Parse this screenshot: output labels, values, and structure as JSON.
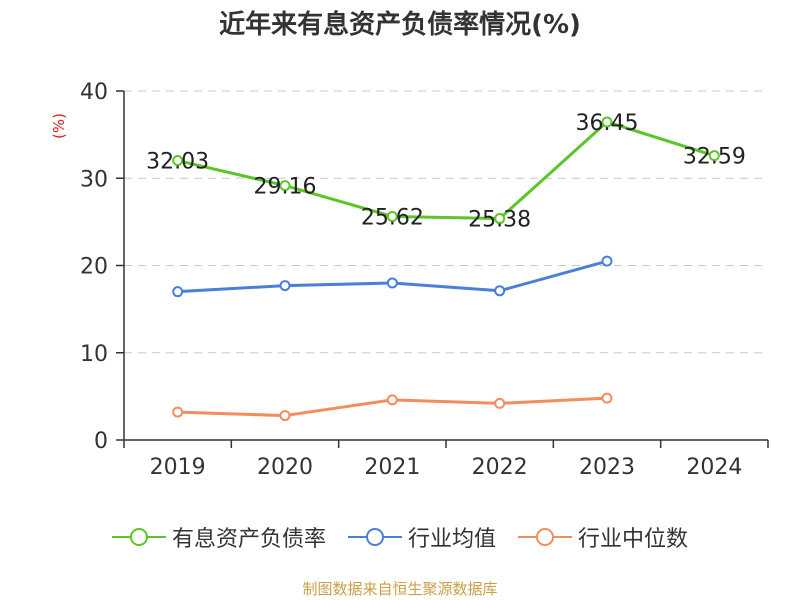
{
  "title": "近年来有息资产负债率情况(%)",
  "source": "制图数据来自恒生聚源数据库",
  "chart_data": {
    "type": "line",
    "categories": [
      "2019",
      "2020",
      "2021",
      "2022",
      "2023",
      "2024"
    ],
    "ylabel": "(%)",
    "ylim": [
      0,
      40
    ],
    "yticks": [
      0,
      10,
      20,
      30,
      40
    ],
    "grid": true,
    "legend_position": "bottom",
    "series": [
      {
        "name": "有息资产负债率",
        "color": "#5ec42b",
        "values": [
          32.03,
          29.16,
          25.62,
          25.38,
          36.45,
          32.59
        ],
        "labels": [
          "32.03",
          "29.16",
          "25.62",
          "25.38",
          "36.45",
          "32.59"
        ]
      },
      {
        "name": "行业均值",
        "color": "#4a7fd9",
        "values": [
          17.0,
          17.7,
          18.0,
          17.1,
          20.5,
          null
        ]
      },
      {
        "name": "行业中位数",
        "color": "#f28e5c",
        "values": [
          3.2,
          2.8,
          4.6,
          4.2,
          4.8,
          null
        ]
      }
    ]
  }
}
